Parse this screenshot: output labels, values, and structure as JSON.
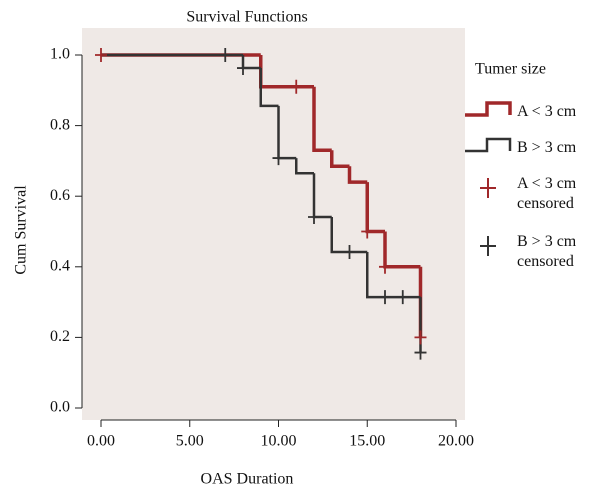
{
  "chart_data": {
    "type": "step",
    "title": "Survival Functions",
    "x_label": "OAS Duration",
    "y_label": "Cum Survival",
    "legend_title": "Tumer size",
    "xlim": [
      0,
      20
    ],
    "ylim": [
      0,
      1
    ],
    "xticks": [
      {
        "value": 0,
        "label": "0.00"
      },
      {
        "value": 5,
        "label": "5.00"
      },
      {
        "value": 10,
        "label": "10.00"
      },
      {
        "value": 15,
        "label": "15.00"
      },
      {
        "value": 20,
        "label": "20.00"
      }
    ],
    "yticks": [
      {
        "value": 0,
        "label": "0.0"
      },
      0.2,
      0.4,
      0.6,
      0.8,
      {
        "value": 1,
        "label": "1.0"
      }
    ],
    "legend": "right",
    "series": [
      {
        "name": "A < 3 cm",
        "color": "#a0282a",
        "x": [
          0,
          9,
          12,
          13,
          14,
          15,
          16,
          18
        ],
        "values": [
          1,
          0.91,
          0.73,
          0.685,
          0.64,
          0.5,
          0.4,
          0.2
        ]
      },
      {
        "name": "B > 3 cm",
        "color": "#333333",
        "x": [
          0,
          8,
          9,
          10,
          11,
          12,
          13,
          15,
          18
        ],
        "values": [
          1,
          0.963,
          0.856,
          0.708,
          0.665,
          0.541,
          0.442,
          0.314,
          0.157
        ]
      },
      {
        "name": "A < 3 cm censored",
        "color": "#a0282a",
        "marker": "+",
        "x": [
          0,
          11,
          15,
          16,
          18
        ],
        "values": [
          1,
          0.91,
          0.5,
          0.4,
          0.2
        ]
      },
      {
        "name": "B > 3 cm censored",
        "color": "#333333",
        "marker": "+",
        "x": [
          7,
          8,
          10,
          12,
          14,
          16,
          17,
          18
        ],
        "values": [
          1,
          0.963,
          0.708,
          0.541,
          0.442,
          0.314,
          0.314,
          0.157
        ]
      }
    ]
  }
}
